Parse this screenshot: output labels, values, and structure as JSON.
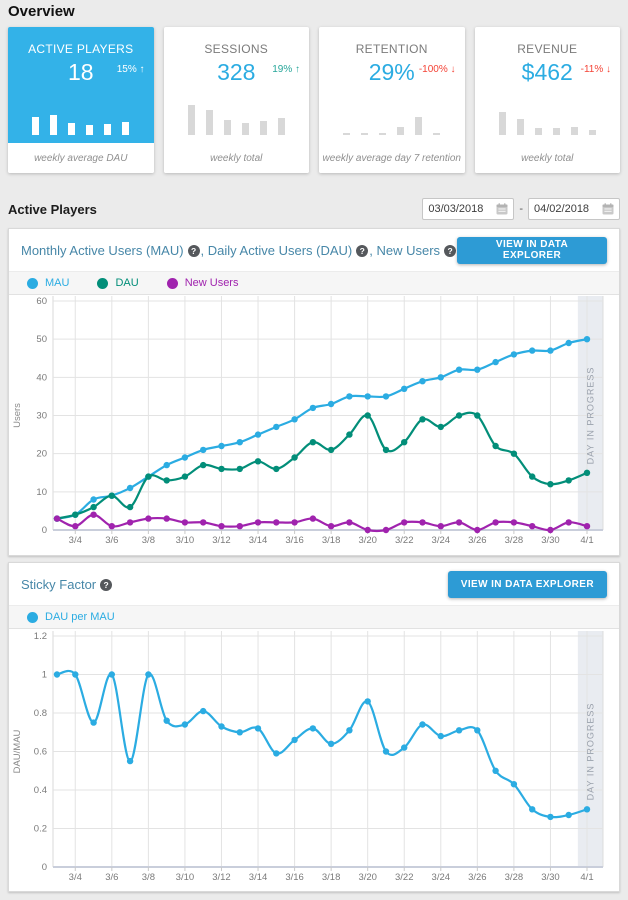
{
  "page": {
    "title": "Overview",
    "background": "#ebebeb"
  },
  "colors": {
    "accent_blue": "#2bace2",
    "card_highlight_blue": "#33b2e8",
    "teal": "#028e79",
    "purple": "#a023ae",
    "button_blue": "#2d9bd5",
    "panel_title_blue": "#4787a8",
    "delta_up_green": "#26a69a",
    "delta_down_red": "#f44336",
    "in_progress_band": "#e9ecf1"
  },
  "summary_cards": [
    {
      "label": "ACTIVE PLAYERS",
      "value": "18",
      "delta": "15% ↑",
      "delta_color": "#ffffff",
      "footer": "weekly average DAU",
      "highlight": true,
      "bars": [
        18,
        20,
        12,
        10,
        11,
        13
      ]
    },
    {
      "label": "SESSIONS",
      "value": "328",
      "delta": "19% ↑",
      "delta_color": "#26a69a",
      "footer": "weekly total",
      "highlight": false,
      "bars": [
        30,
        25,
        15,
        12,
        14,
        17
      ]
    },
    {
      "label": "RETENTION",
      "value": "29%",
      "delta": "-100% ↓",
      "delta_color": "#f44336",
      "footer": "weekly average day 7 retention",
      "highlight": false,
      "bars": [
        2,
        2,
        2,
        8,
        18,
        2
      ]
    },
    {
      "label": "REVENUE",
      "value": "$462",
      "delta": "-11% ↓",
      "delta_color": "#f44336",
      "footer": "weekly total",
      "highlight": false,
      "bars": [
        23,
        16,
        7,
        7,
        8,
        5
      ]
    }
  ],
  "section": {
    "title": "Active Players",
    "date_from": "03/03/2018",
    "date_to": "04/02/2018",
    "separator": "-"
  },
  "panels": [
    {
      "title_parts": [
        "Monthly Active Users (MAU)",
        "Daily Active Users (DAU)",
        "New Users"
      ],
      "title_separator": ", ",
      "button_label": "VIEW IN DATA EXPLORER",
      "legend": [
        {
          "label": "MAU",
          "color": "#2bace2"
        },
        {
          "label": "DAU",
          "color": "#028e79"
        },
        {
          "label": "New Users",
          "color": "#a023ae"
        }
      ]
    },
    {
      "title_parts": [
        "Sticky Factor"
      ],
      "title_separator": ", ",
      "button_label": "VIEW IN DATA EXPLORER",
      "legend": [
        {
          "label": "DAU per MAU",
          "color": "#2bace2"
        }
      ]
    }
  ],
  "chart_data": [
    {
      "type": "line",
      "title": "Monthly Active Users (MAU), Daily Active Users (DAU), New Users",
      "xlabel": "",
      "ylabel": "Users",
      "ylim": [
        0,
        60
      ],
      "yticks": [
        0,
        10,
        20,
        30,
        40,
        50,
        60
      ],
      "grid": true,
      "legend_position": "top",
      "x": [
        "3/3",
        "3/4",
        "3/5",
        "3/6",
        "3/7",
        "3/8",
        "3/9",
        "3/10",
        "3/11",
        "3/12",
        "3/13",
        "3/14",
        "3/15",
        "3/16",
        "3/17",
        "3/18",
        "3/19",
        "3/20",
        "3/21",
        "3/22",
        "3/23",
        "3/24",
        "3/25",
        "3/26",
        "3/27",
        "3/28",
        "3/29",
        "3/30",
        "3/31",
        "4/1"
      ],
      "xticks": [
        "3/4",
        "3/6",
        "3/8",
        "3/10",
        "3/12",
        "3/14",
        "3/16",
        "3/18",
        "3/20",
        "3/22",
        "3/24",
        "3/26",
        "3/28",
        "3/30",
        "4/1"
      ],
      "annotation": {
        "label": "DAY IN PROGRESS",
        "covers": "4/1"
      },
      "series": [
        {
          "name": "MAU",
          "color": "#2bace2",
          "values": [
            3,
            4,
            8,
            9,
            11,
            14,
            17,
            19,
            21,
            22,
            23,
            25,
            27,
            29,
            32,
            33,
            35,
            35,
            35,
            37,
            39,
            40,
            42,
            42,
            44,
            46,
            47,
            47,
            49,
            50
          ]
        },
        {
          "name": "DAU",
          "color": "#028e79",
          "values": [
            3,
            4,
            6,
            9,
            6,
            14,
            13,
            14,
            17,
            16,
            16,
            18,
            16,
            19,
            23,
            21,
            25,
            30,
            21,
            23,
            29,
            27,
            30,
            30,
            22,
            20,
            14,
            12,
            13,
            15
          ]
        },
        {
          "name": "New Users",
          "color": "#a023ae",
          "values": [
            3,
            1,
            4,
            1,
            2,
            3,
            3,
            2,
            2,
            1,
            1,
            2,
            2,
            2,
            3,
            1,
            2,
            0,
            0,
            2,
            2,
            1,
            2,
            0,
            2,
            2,
            1,
            0,
            2,
            1
          ]
        }
      ]
    },
    {
      "type": "line",
      "title": "Sticky Factor",
      "xlabel": "",
      "ylabel": "DAU/MAU",
      "ylim": [
        0,
        1.2
      ],
      "yticks": [
        0,
        0.2,
        0.4,
        0.6,
        0.8,
        1,
        1.2
      ],
      "grid": true,
      "legend_position": "top",
      "x": [
        "3/3",
        "3/4",
        "3/5",
        "3/6",
        "3/7",
        "3/8",
        "3/9",
        "3/10",
        "3/11",
        "3/12",
        "3/13",
        "3/14",
        "3/15",
        "3/16",
        "3/17",
        "3/18",
        "3/19",
        "3/20",
        "3/21",
        "3/22",
        "3/23",
        "3/24",
        "3/25",
        "3/26",
        "3/27",
        "3/28",
        "3/29",
        "3/30",
        "3/31",
        "4/1"
      ],
      "xticks": [
        "3/4",
        "3/6",
        "3/8",
        "3/10",
        "3/12",
        "3/14",
        "3/16",
        "3/18",
        "3/20",
        "3/22",
        "3/24",
        "3/26",
        "3/28",
        "3/30",
        "4/1"
      ],
      "annotation": {
        "label": "DAY IN PROGRESS",
        "covers": "4/1"
      },
      "series": [
        {
          "name": "DAU per MAU",
          "color": "#2bace2",
          "values": [
            1,
            1,
            0.75,
            1,
            0.55,
            1,
            0.76,
            0.74,
            0.81,
            0.73,
            0.7,
            0.72,
            0.59,
            0.66,
            0.72,
            0.64,
            0.71,
            0.86,
            0.6,
            0.62,
            0.74,
            0.68,
            0.71,
            0.71,
            0.5,
            0.43,
            0.3,
            0.26,
            0.27,
            0.3
          ]
        }
      ]
    }
  ]
}
